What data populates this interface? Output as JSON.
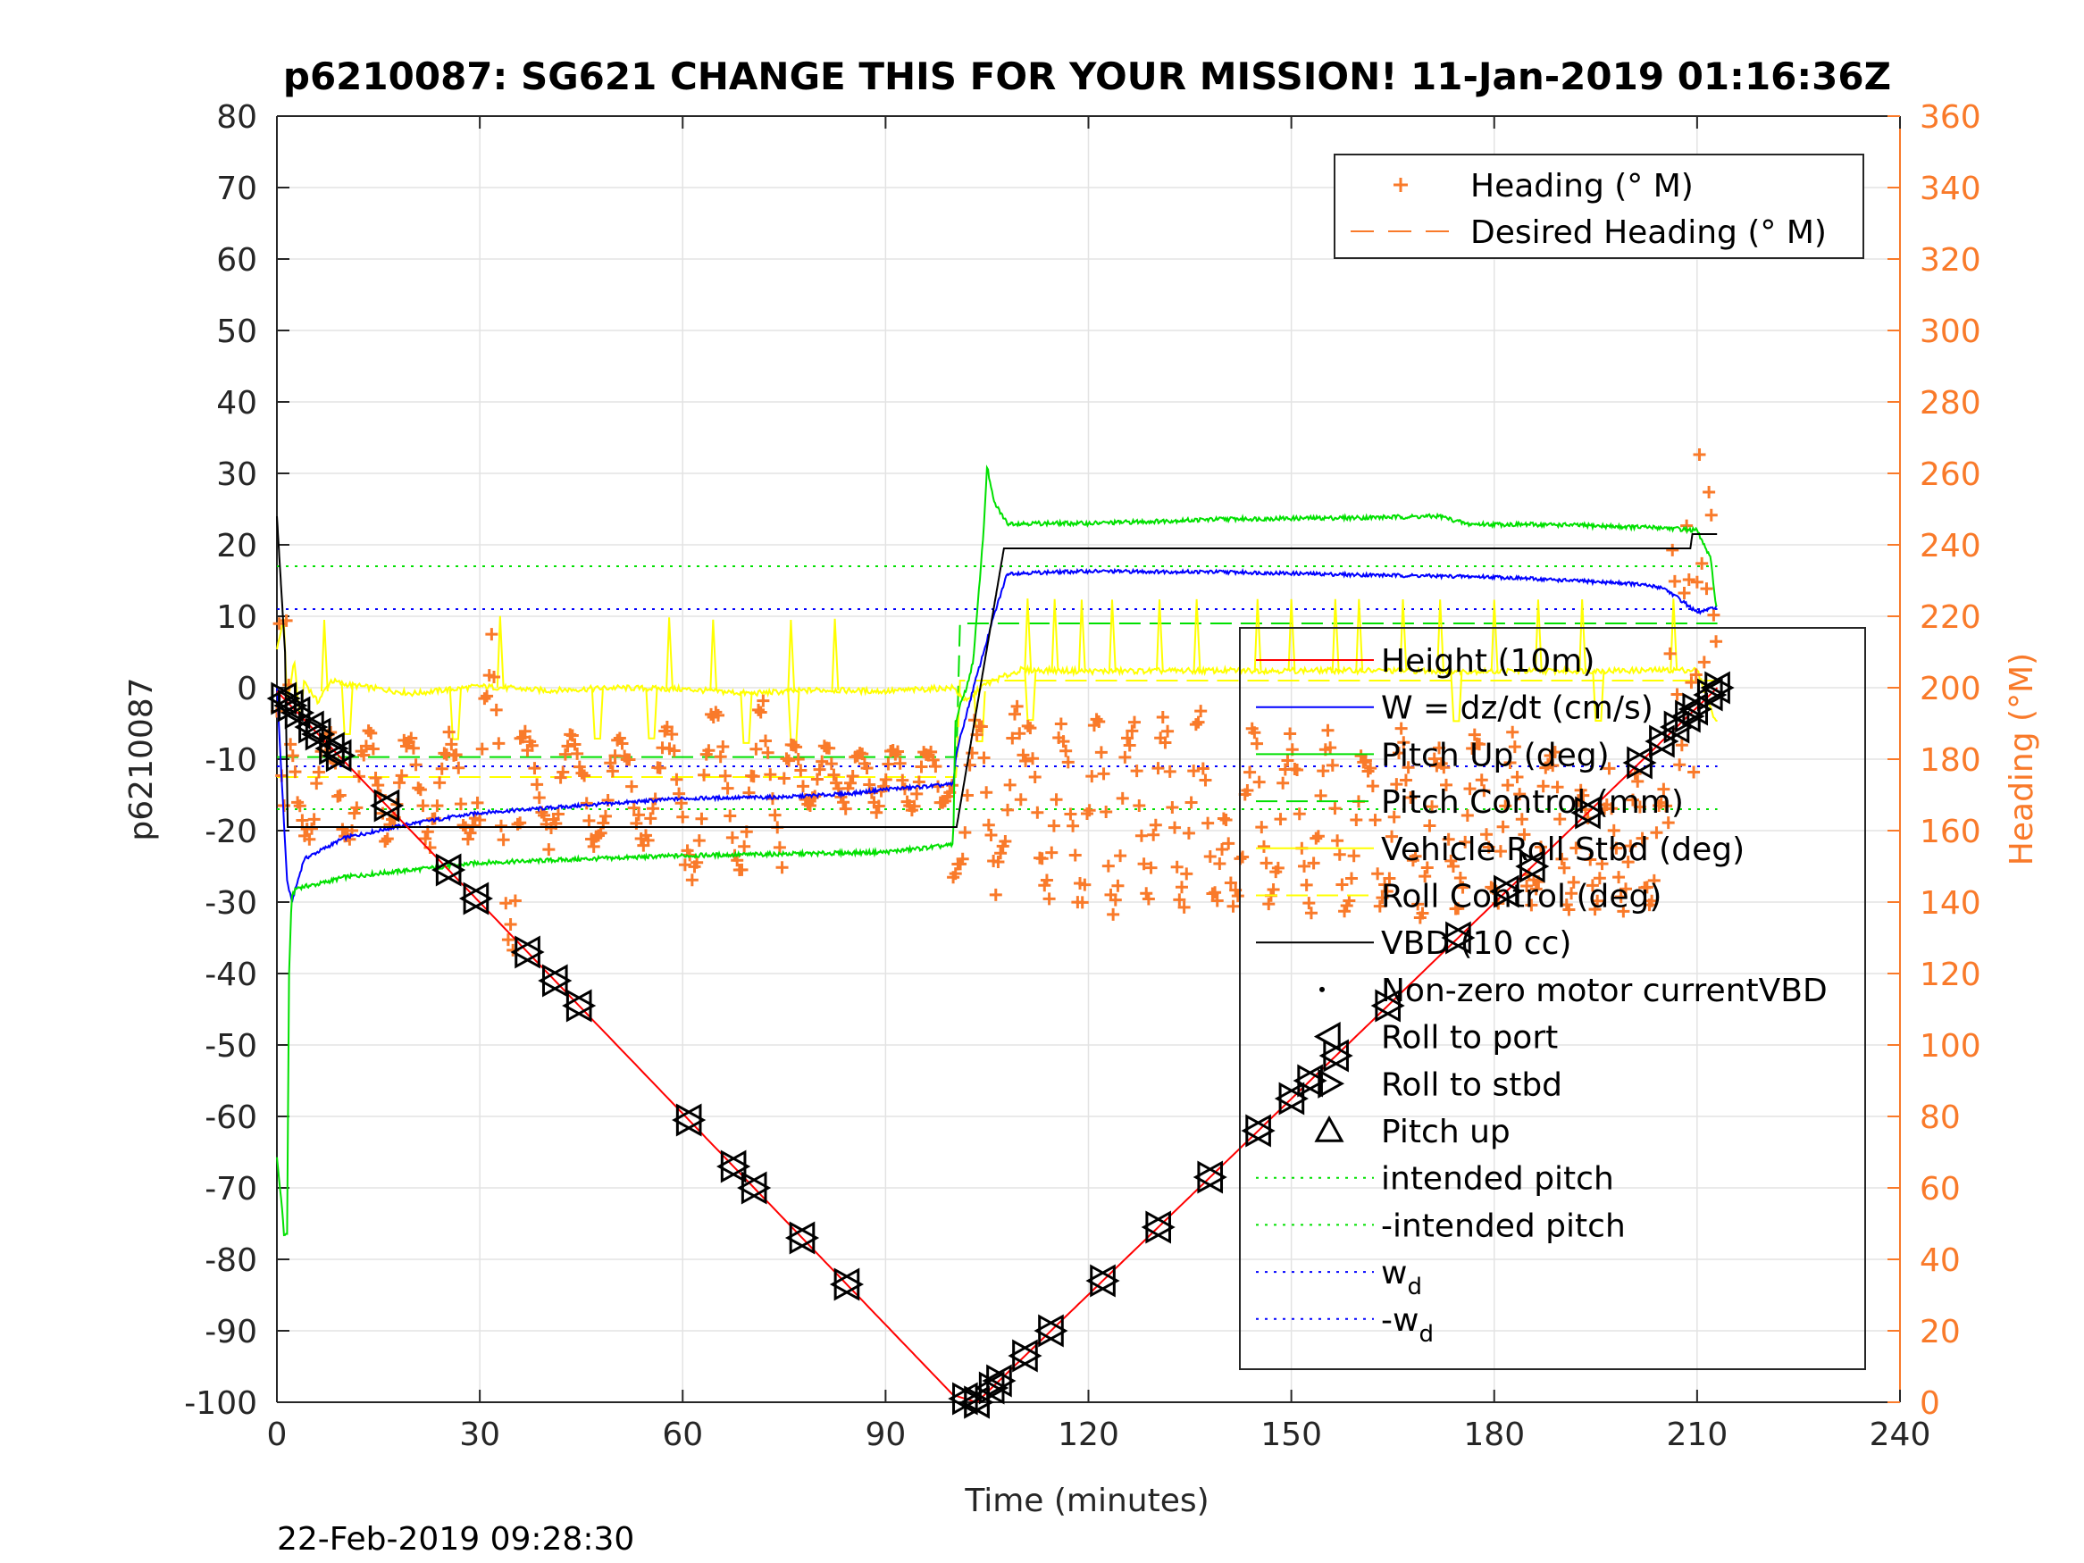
{
  "chart_data": {
    "type": "line",
    "title": "p6210087: SG621 CHANGE THIS FOR YOUR MISSION! 11-Jan-2019 01:16:36Z",
    "xlabel": "Time (minutes)",
    "ylabel": "p6210087",
    "y2label": "Heading (°M)",
    "footer": "22-Feb-2019 09:28:30",
    "xlim": [
      0,
      240
    ],
    "ylim": [
      -100,
      80
    ],
    "y2lim": [
      0,
      360
    ],
    "xticks": [
      "0",
      "30",
      "60",
      "90",
      "120",
      "150",
      "180",
      "210",
      "240"
    ],
    "yticks": [
      "-100",
      "-90",
      "-80",
      "-70",
      "-60",
      "-50",
      "-40",
      "-30",
      "-20",
      "-10",
      "0",
      "10",
      "20",
      "30",
      "40",
      "50",
      "60",
      "70",
      "80"
    ],
    "y2ticks": [
      "0",
      "20",
      "40",
      "60",
      "80",
      "100",
      "120",
      "140",
      "160",
      "180",
      "200",
      "220",
      "240",
      "260",
      "280",
      "300",
      "320",
      "340",
      "360"
    ],
    "grid": true,
    "legend_placement": "right",
    "colors": {
      "height": "#ff0000",
      "w": "#0000ff",
      "pitch": "#00e000",
      "roll": "#ffff00",
      "vbd": "#000000",
      "heading": "#f97a2a"
    },
    "legend_main": [
      {
        "label": "Height (10m)",
        "style": "solid",
        "color": "#ff0000"
      },
      {
        "label": "W = dz/dt (cm/s)",
        "style": "solid",
        "color": "#0000ff"
      },
      {
        "label": "Pitch Up (deg)",
        "style": "solid",
        "color": "#00e000"
      },
      {
        "label": "Pitch Control (mm)",
        "style": "dashed",
        "color": "#00e000"
      },
      {
        "label": "Vehicle Roll Stbd (deg)",
        "style": "solid",
        "color": "#ffff00"
      },
      {
        "label": "Roll Control (deg)",
        "style": "dashed",
        "color": "#ffff00"
      },
      {
        "label": "VBD (10 cc)",
        "style": "solid",
        "color": "#000000"
      },
      {
        "label": "Non-zero motor currentVBD",
        "style": "dot",
        "color": "#000000"
      },
      {
        "label": "Roll to port",
        "style": "tri-left",
        "color": "#000000"
      },
      {
        "label": "Roll to stbd",
        "style": "tri-right",
        "color": "#000000"
      },
      {
        "label": "Pitch up",
        "style": "tri-up",
        "color": "#000000"
      },
      {
        "label": "intended pitch",
        "style": "dotted",
        "color": "#00e000"
      },
      {
        "label": "-intended pitch",
        "style": "dotted",
        "color": "#00e000"
      },
      {
        "label": "w",
        "sub": "d",
        "style": "dotted",
        "color": "#0000ff"
      },
      {
        "label": "-w",
        "sub": "d",
        "style": "dotted",
        "color": "#0000ff"
      }
    ],
    "legend_heading": [
      {
        "label": "Heading (° M)",
        "style": "plus",
        "color": "#f97a2a"
      },
      {
        "label": "Desired Heading (° M)",
        "style": "dashed",
        "color": "#f97a2a"
      }
    ],
    "series": {
      "height": {
        "x": [
          0,
          100,
          103.5,
          213
        ],
        "y": [
          -0.5,
          -99,
          -100,
          0
        ]
      },
      "vbd": {
        "x": [
          0,
          1.2,
          1.6,
          100.5,
          107.5,
          209,
          209.3,
          213
        ],
        "y": [
          24,
          5,
          -19.5,
          -19.5,
          19.5,
          19.5,
          21.5,
          21.5
        ]
      },
      "w": {
        "x": [
          0,
          1.5,
          2.2,
          4,
          10,
          20,
          30,
          45,
          60,
          75,
          85,
          90,
          95,
          100,
          100.5,
          103,
          106,
          108,
          120,
          140,
          160,
          180,
          200,
          205,
          208,
          210,
          212,
          213
        ],
        "y": [
          0,
          -27,
          -30,
          -24,
          -21,
          -19,
          -17.5,
          -16.5,
          -15.5,
          -15.3,
          -14.8,
          -14.2,
          -13.9,
          -13.5,
          -9,
          0,
          10,
          16,
          16.3,
          16.2,
          15.8,
          15.5,
          14.6,
          14.0,
          12,
          10.5,
          11,
          11.5
        ]
      },
      "pitch": {
        "x": [
          0,
          0.8,
          1,
          1.5,
          1.8,
          2.2,
          3,
          6,
          10,
          20,
          30,
          45,
          60,
          80,
          90,
          100,
          100.3,
          101.5,
          102,
          103,
          104.5,
          105,
          106,
          108,
          120,
          140,
          160,
          172,
          176,
          190,
          200,
          205,
          210,
          212,
          213
        ],
        "y": [
          -66,
          -73,
          -76.5,
          -76.5,
          -40,
          -29,
          -28,
          -27.5,
          -26.5,
          -25.5,
          -24.5,
          -24,
          -23.5,
          -23.2,
          -23,
          -22,
          -5,
          -1,
          0,
          4,
          22,
          31,
          26,
          23,
          23,
          23.6,
          23.8,
          24,
          22.9,
          22.8,
          22.5,
          22.4,
          22,
          18,
          10
        ]
      },
      "pitch_control": {
        "x": [
          0,
          100.5,
          101,
          213
        ],
        "y": [
          -9.7,
          -9.7,
          9.0,
          9.0
        ]
      },
      "roll": {
        "x": [
          0,
          1,
          1.5,
          2,
          2.5,
          3.5,
          4,
          6,
          8,
          10,
          20,
          30,
          40,
          50,
          60,
          70,
          80,
          90,
          100,
          101,
          102,
          104,
          106,
          110,
          120,
          140,
          160,
          180,
          200,
          210,
          212,
          213
        ],
        "y": [
          5,
          10,
          -2,
          0,
          4,
          -5,
          1,
          -2,
          1,
          0.5,
          -0.8,
          0.2,
          -0.4,
          0,
          -0.2,
          -0.8,
          -0.3,
          -0.5,
          0,
          -1,
          -2,
          0,
          1,
          2.5,
          2.3,
          2.4,
          2.4,
          2.3,
          2.4,
          2.5,
          -3,
          -5
        ]
      },
      "roll_control": {
        "x": [
          0,
          100.5,
          101,
          213
        ],
        "y": [
          -12.5,
          -12.5,
          1.0,
          1.0
        ]
      },
      "intended_pitch": 17.0,
      "neg_intended_pitch": -17.0,
      "wd": 11.0,
      "neg_wd": -11.0,
      "roll_spikes_up": [
        7,
        33,
        58,
        64.5,
        76,
        82.5,
        111,
        115,
        119,
        123.5,
        130.5,
        136,
        145,
        150,
        156.5,
        160,
        166.5,
        172,
        180,
        186.5,
        193,
        206.5
      ],
      "roll_spikes_down": [
        10,
        26,
        47,
        55,
        69,
        76,
        103.5,
        111,
        174,
        195
      ],
      "markers_port": [
        -1.5,
        -2.5,
        -3.5,
        -5.5,
        -6.5,
        -8.5,
        -9.5,
        -16.5,
        -25.5,
        -29.5,
        -37,
        -41,
        -44.5,
        -60.5,
        -67,
        -70,
        -77,
        -83.5,
        -99.5,
        -100
      ],
      "markers_stbd": [
        -100,
        -98,
        -97,
        -93.5,
        -90,
        -83,
        -75.5,
        -68.5,
        -62,
        -57.5,
        -51.5,
        -55,
        -44.5,
        -35,
        -28.5,
        -25,
        -17.5,
        -10.5,
        -7.5,
        -5.5,
        -4,
        -3,
        -1,
        0
      ],
      "heading": {
        "segments": [
          {
            "x0": 0,
            "x1": 2,
            "mean": 190,
            "amp": 28,
            "period": 1.2
          },
          {
            "x0": 2,
            "x1": 30,
            "mean": 172,
            "amp": 14,
            "period": 6
          },
          {
            "x0": 30,
            "x1": 36,
            "mean": 170,
            "amp": 38,
            "period": 6
          },
          {
            "x0": 36,
            "x1": 60,
            "mean": 172,
            "amp": 14,
            "period": 7
          },
          {
            "x0": 60,
            "x1": 75,
            "mean": 170,
            "amp": 22,
            "period": 7
          },
          {
            "x0": 75,
            "x1": 100,
            "mean": 175,
            "amp": 8,
            "period": 5
          },
          {
            "x0": 100,
            "x1": 110,
            "mean": 168,
            "amp": 22,
            "period": 6
          },
          {
            "x0": 110,
            "x1": 140,
            "mean": 165,
            "amp": 25,
            "period": 5
          },
          {
            "x0": 140,
            "x1": 190,
            "mean": 162,
            "amp": 22,
            "period": 5.5
          },
          {
            "x0": 190,
            "x1": 206,
            "mean": 155,
            "amp": 18,
            "period": 4
          },
          {
            "x0": 206,
            "x1": 210,
            "mean": 210,
            "amp": 30,
            "period": 2
          },
          {
            "x0": 210,
            "x1": 213,
            "mean": 235,
            "amp": 25,
            "period": 1.5
          }
        ]
      }
    }
  }
}
